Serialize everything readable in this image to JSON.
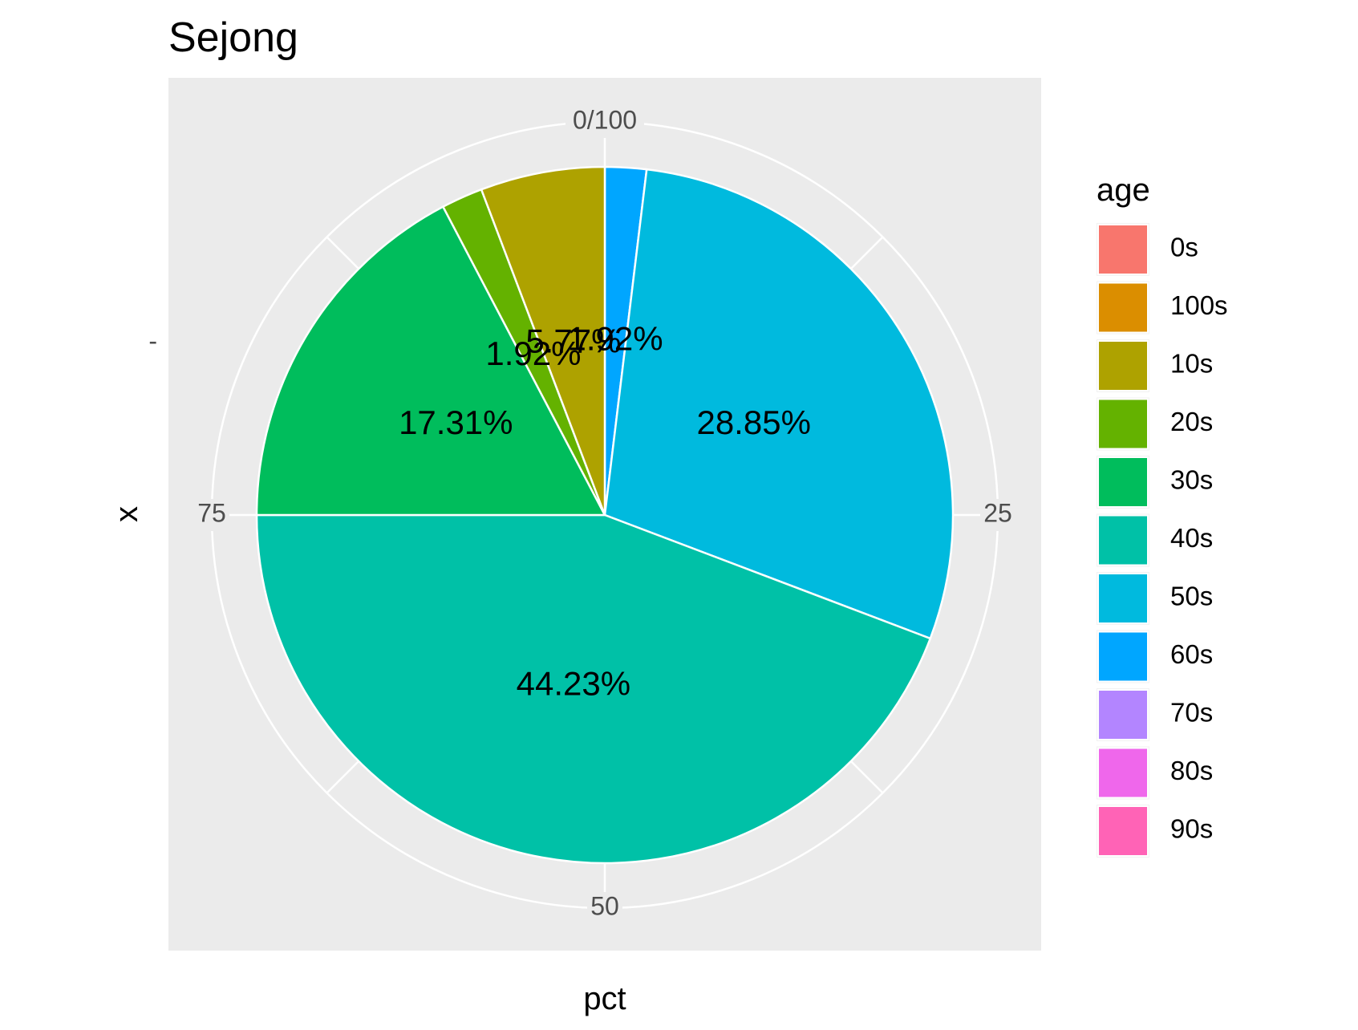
{
  "chart_data": {
    "type": "pie",
    "title": "Sejong",
    "xlabel": "pct",
    "ylabel": "x",
    "y_tick_label": "-",
    "theta_ticks": [
      {
        "value": 0,
        "label": "0/100"
      },
      {
        "value": 25,
        "label": "25"
      },
      {
        "value": 50,
        "label": "50"
      },
      {
        "value": 75,
        "label": "75"
      }
    ],
    "legend_title": "age",
    "legend_position": "right",
    "categories": [
      "0s",
      "100s",
      "10s",
      "20s",
      "30s",
      "40s",
      "50s",
      "60s",
      "70s",
      "80s",
      "90s"
    ],
    "colors": [
      "#F8766D",
      "#DB8E00",
      "#AEA200",
      "#64B200",
      "#00BD5C",
      "#00C1A7",
      "#00BADE",
      "#00A6FF",
      "#B385FF",
      "#EF67EB",
      "#FF63B6"
    ],
    "slices": [
      {
        "category": "60s",
        "value": 1.92,
        "label": "1.92%"
      },
      {
        "category": "50s",
        "value": 28.85,
        "label": "28.85%"
      },
      {
        "category": "40s",
        "value": 44.23,
        "label": "44.23%"
      },
      {
        "category": "30s",
        "value": 17.31,
        "label": "17.31%"
      },
      {
        "category": "20s",
        "value": 1.92,
        "label": "1.92%"
      },
      {
        "category": "10s",
        "value": 5.77,
        "label": "5.77%"
      }
    ],
    "grid": true
  }
}
